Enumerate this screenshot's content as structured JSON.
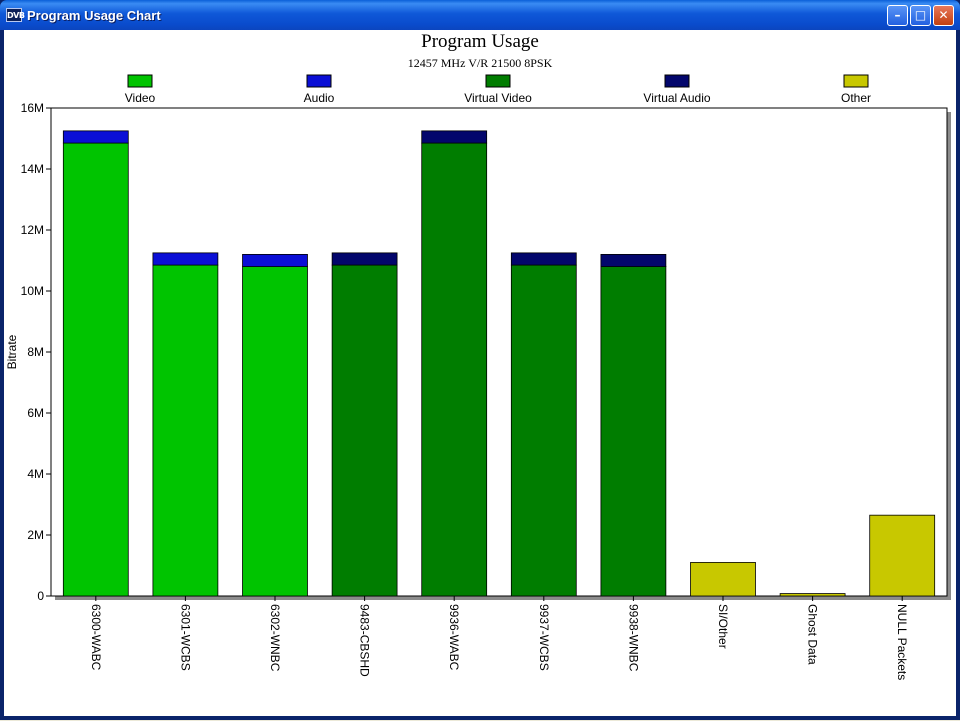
{
  "window": {
    "title": "Program Usage Chart",
    "icon_text": "DVB",
    "buttons": {
      "minimize": "minimize-icon",
      "maximize": "maximize-icon",
      "close": "close-icon"
    }
  },
  "colors": {
    "video": "#00c400",
    "audio": "#0b0fd6",
    "virtual_video": "#007d00",
    "virtual_audio": "#03066c",
    "other": "#c8c800"
  },
  "chart_data": {
    "type": "bar",
    "stacked": true,
    "title": "Program Usage",
    "subtitle": "12457 MHz V/R 21500 8PSK",
    "xlabel": "",
    "ylabel": "Bitrate",
    "ylim": [
      0,
      16000000
    ],
    "yticks": [
      0,
      2000000,
      4000000,
      6000000,
      8000000,
      10000000,
      12000000,
      14000000,
      16000000
    ],
    "ytick_labels": [
      "0",
      "2M",
      "4M",
      "6M",
      "8M",
      "10M",
      "12M",
      "14M",
      "16M"
    ],
    "grid": false,
    "legend_position": "top",
    "categories": [
      "6300-WABC",
      "6301-WCBS",
      "6302-WNBC",
      "9483-CBSHD",
      "9936-WABC",
      "9937-WCBS",
      "9938-WNBC",
      "SI/Other",
      "Ghost Data",
      "NULL Packets"
    ],
    "series": [
      {
        "name": "Video",
        "color_key": "video",
        "values": [
          14850000,
          10850000,
          10800000,
          0,
          0,
          0,
          0,
          0,
          0,
          0
        ]
      },
      {
        "name": "Audio",
        "color_key": "audio",
        "values": [
          400000,
          400000,
          400000,
          0,
          0,
          0,
          0,
          0,
          0,
          0
        ]
      },
      {
        "name": "Virtual Video",
        "color_key": "virtual_video",
        "values": [
          0,
          0,
          0,
          10850000,
          14850000,
          10850000,
          10800000,
          0,
          0,
          0
        ]
      },
      {
        "name": "Virtual Audio",
        "color_key": "virtual_audio",
        "values": [
          0,
          0,
          0,
          400000,
          400000,
          400000,
          400000,
          0,
          0,
          0
        ]
      },
      {
        "name": "Other",
        "color_key": "other",
        "values": [
          0,
          0,
          0,
          0,
          0,
          0,
          0,
          1100000,
          80000,
          2650000
        ]
      }
    ]
  }
}
